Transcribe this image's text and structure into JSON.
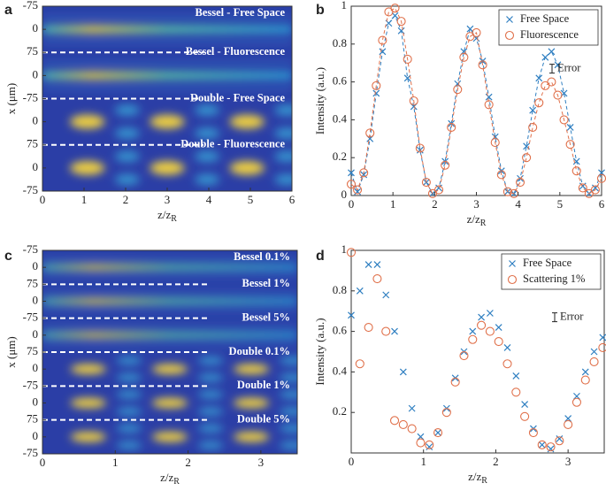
{
  "chart_data": [
    {
      "type": "heatmap",
      "label": "a",
      "xlabel": "z/z",
      "xlabel_subscript": "R",
      "ylabel": "x (μm)",
      "xlim": [
        0,
        6
      ],
      "xticks": [
        0,
        1,
        2,
        3,
        4,
        5,
        6
      ],
      "y_categories": [
        -75,
        0,
        75,
        0,
        -75,
        0,
        75,
        0,
        -75
      ],
      "row_labels": [
        "Bessel - Free Space",
        "Bessel - Fluorescence",
        "Double - Free Space",
        "Double - Fluorescence"
      ]
    },
    {
      "type": "scatter",
      "label": "b",
      "xlabel": "z/z",
      "xlabel_subscript": "R",
      "ylabel": "Intensity (a.u.)",
      "xlim": [
        0,
        6
      ],
      "xticks": [
        0,
        1,
        2,
        3,
        4,
        5,
        6
      ],
      "ylim": [
        0,
        1
      ],
      "yticks": [
        0,
        0.2,
        0.4,
        0.6,
        0.8,
        1
      ],
      "legend": "upper right",
      "annotation": "Error",
      "x": [
        0,
        0.15,
        0.3,
        0.45,
        0.6,
        0.75,
        0.9,
        1.05,
        1.2,
        1.35,
        1.5,
        1.65,
        1.8,
        1.95,
        2.1,
        2.25,
        2.4,
        2.55,
        2.7,
        2.85,
        3.0,
        3.15,
        3.3,
        3.45,
        3.6,
        3.75,
        3.9,
        4.05,
        4.2,
        4.35,
        4.5,
        4.65,
        4.8,
        4.95,
        5.1,
        5.25,
        5.4,
        5.55,
        5.7,
        5.85,
        6.0
      ],
      "series": [
        {
          "name": "Free Space",
          "color": "#2f7fc1",
          "marker": "x",
          "line": "dashed",
          "values": [
            0.12,
            0.02,
            0.11,
            0.3,
            0.54,
            0.76,
            0.91,
            0.95,
            0.87,
            0.62,
            0.47,
            0.24,
            0.07,
            0.01,
            0.04,
            0.18,
            0.38,
            0.59,
            0.76,
            0.88,
            0.83,
            0.71,
            0.52,
            0.31,
            0.13,
            0.02,
            0.01,
            0.09,
            0.26,
            0.45,
            0.62,
            0.73,
            0.76,
            0.69,
            0.54,
            0.36,
            0.18,
            0.05,
            0.01,
            0.04,
            0.12
          ]
        },
        {
          "name": "Fluorescence",
          "color": "#e0704a",
          "marker": "o",
          "line": "dashed",
          "values": [
            0.06,
            0.03,
            0.12,
            0.33,
            0.58,
            0.82,
            0.97,
            0.99,
            0.92,
            0.72,
            0.5,
            0.25,
            0.07,
            0.01,
            0.03,
            0.16,
            0.36,
            0.56,
            0.73,
            0.84,
            0.86,
            0.69,
            0.48,
            0.28,
            0.11,
            0.02,
            0.01,
            0.07,
            0.2,
            0.36,
            0.49,
            0.58,
            0.6,
            0.53,
            0.4,
            0.27,
            0.13,
            0.04,
            0.01,
            0.03,
            0.09
          ]
        }
      ]
    },
    {
      "type": "heatmap",
      "label": "c",
      "xlabel": "z/z",
      "xlabel_subscript": "R",
      "ylabel": "x (μm)",
      "xlim": [
        0,
        3.5
      ],
      "xticks": [
        0,
        1,
        2,
        3
      ],
      "y_categories": [
        -75,
        0,
        75,
        0,
        -75,
        0,
        75,
        0,
        -75,
        0,
        75,
        0,
        -75
      ],
      "row_labels": [
        "Bessel 0.1%",
        "Bessel 1%",
        "Bessel 5%",
        "Double 0.1%",
        "Double 1%",
        "Double 5%"
      ]
    },
    {
      "type": "scatter",
      "label": "d",
      "xlabel": "z/z",
      "xlabel_subscript": "R",
      "ylabel": "Intensity (a.u.)",
      "xlim": [
        0,
        3.5
      ],
      "xticks": [
        0,
        1,
        2,
        3
      ],
      "ylim": [
        0,
        1
      ],
      "yticks": [
        0.2,
        0.4,
        0.6,
        0.8,
        1
      ],
      "legend": "upper right",
      "annotation": "Error",
      "x": [
        0,
        0.12,
        0.24,
        0.36,
        0.48,
        0.6,
        0.72,
        0.84,
        0.96,
        1.08,
        1.2,
        1.32,
        1.44,
        1.56,
        1.68,
        1.8,
        1.92,
        2.04,
        2.16,
        2.28,
        2.4,
        2.52,
        2.64,
        2.76,
        2.88,
        3.0,
        3.12,
        3.24,
        3.36,
        3.48
      ],
      "series": [
        {
          "name": "Free Space",
          "color": "#2f7fc1",
          "marker": "x",
          "values": [
            0.68,
            0.8,
            0.93,
            0.93,
            0.78,
            0.6,
            0.4,
            0.22,
            0.08,
            0.03,
            0.1,
            0.22,
            0.37,
            0.5,
            0.6,
            0.67,
            0.69,
            0.62,
            0.52,
            0.38,
            0.24,
            0.12,
            0.04,
            0.02,
            0.07,
            0.17,
            0.28,
            0.4,
            0.5,
            0.57
          ]
        },
        {
          "name": "Scattering 1%",
          "color": "#e0704a",
          "marker": "o",
          "values": [
            0.99,
            0.44,
            0.62,
            0.86,
            0.6,
            0.16,
            0.14,
            0.12,
            0.05,
            0.04,
            0.1,
            0.2,
            0.35,
            0.48,
            0.56,
            0.63,
            0.6,
            0.55,
            0.44,
            0.3,
            0.18,
            0.1,
            0.04,
            0.03,
            0.06,
            0.14,
            0.25,
            0.36,
            0.45,
            0.52
          ]
        }
      ]
    }
  ]
}
